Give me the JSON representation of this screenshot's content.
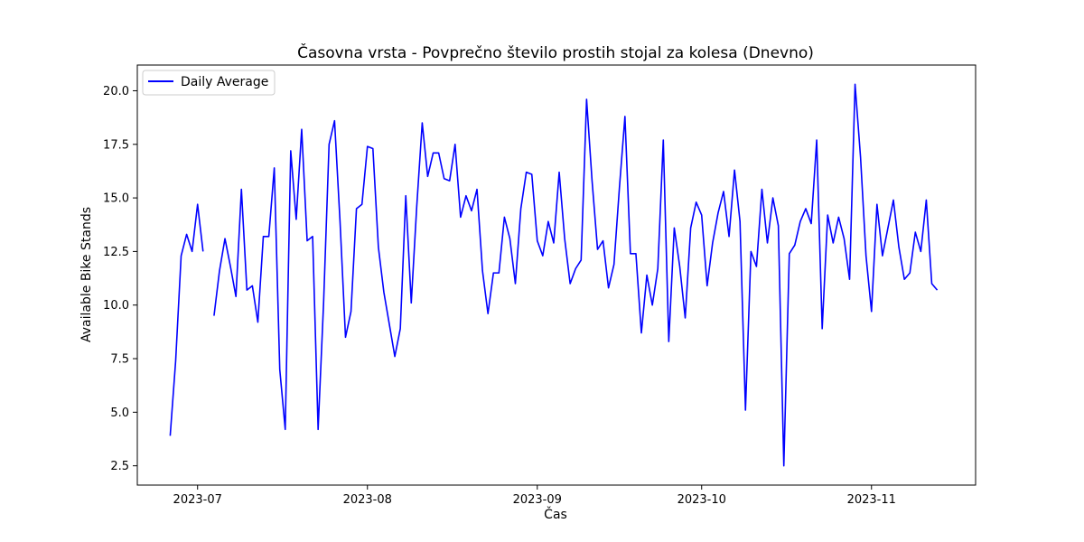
{
  "chart_data": {
    "type": "line",
    "title": "Časovna vrsta - Povprečno število prostih stojal za kolesa (Dnevno)",
    "xlabel": "Čas",
    "ylabel": "Available Bike Stands",
    "legend": {
      "placement": "top-left",
      "entries": [
        "Daily Average"
      ]
    },
    "x_start": "2023-06-26",
    "xlim": [
      "2023-06-20",
      "2023-11-20"
    ],
    "ylim": [
      1.6,
      21.2
    ],
    "xticks": [
      {
        "date": "2023-07-01",
        "label": "2023-07"
      },
      {
        "date": "2023-08-01",
        "label": "2023-08"
      },
      {
        "date": "2023-09-01",
        "label": "2023-09"
      },
      {
        "date": "2023-10-01",
        "label": "2023-10"
      },
      {
        "date": "2023-11-01",
        "label": "2023-11"
      }
    ],
    "yticks": [
      {
        "value": 2.5,
        "label": "2.5"
      },
      {
        "value": 5.0,
        "label": "5.0"
      },
      {
        "value": 7.5,
        "label": "7.5"
      },
      {
        "value": 10.0,
        "label": "10.0"
      },
      {
        "value": 12.5,
        "label": "12.5"
      },
      {
        "value": 15.0,
        "label": "15.0"
      },
      {
        "value": 17.5,
        "label": "17.5"
      },
      {
        "value": 20.0,
        "label": "20.0"
      }
    ],
    "grid": false,
    "series": [
      {
        "name": "Daily Average",
        "color": "#0000ff",
        "values": [
          3.9,
          7.4,
          12.3,
          13.3,
          12.5,
          14.7,
          12.5,
          null,
          9.5,
          11.6,
          13.1,
          11.8,
          10.4,
          15.4,
          10.7,
          10.9,
          9.2,
          13.2,
          13.2,
          16.4,
          7.0,
          4.2,
          17.2,
          14.0,
          18.2,
          13.0,
          13.2,
          4.2,
          10.1,
          17.5,
          18.6,
          13.9,
          8.5,
          9.7,
          14.5,
          14.7,
          17.4,
          17.3,
          12.7,
          10.6,
          9.1,
          7.6,
          8.9,
          15.1,
          10.1,
          14.6,
          18.5,
          16.0,
          17.1,
          17.1,
          15.9,
          15.8,
          17.5,
          14.1,
          15.1,
          14.4,
          15.4,
          11.6,
          9.6,
          11.5,
          11.5,
          14.1,
          13.1,
          11.0,
          14.5,
          16.2,
          16.1,
          13.0,
          12.3,
          13.9,
          12.9,
          16.2,
          13.1,
          11.0,
          11.7,
          12.1,
          19.6,
          15.8,
          12.6,
          13.0,
          10.8,
          11.9,
          15.5,
          18.8,
          12.4,
          12.4,
          8.7,
          11.4,
          10.0,
          11.7,
          17.7,
          8.3,
          13.6,
          11.8,
          9.4,
          13.6,
          14.8,
          14.2,
          10.9,
          12.9,
          14.3,
          15.3,
          13.2,
          16.3,
          13.9,
          5.1,
          12.5,
          11.8,
          15.4,
          12.9,
          15.0,
          13.7,
          2.5,
          12.4,
          12.8,
          13.9,
          14.5,
          13.8,
          17.7,
          8.9,
          14.2,
          12.9,
          14.1,
          13.1,
          11.2,
          20.3,
          16.9,
          12.3,
          9.7,
          14.7,
          12.3,
          13.6,
          14.9,
          12.7,
          11.2,
          11.5,
          13.4,
          12.5,
          14.9,
          11.0,
          10.7
        ]
      }
    ]
  }
}
